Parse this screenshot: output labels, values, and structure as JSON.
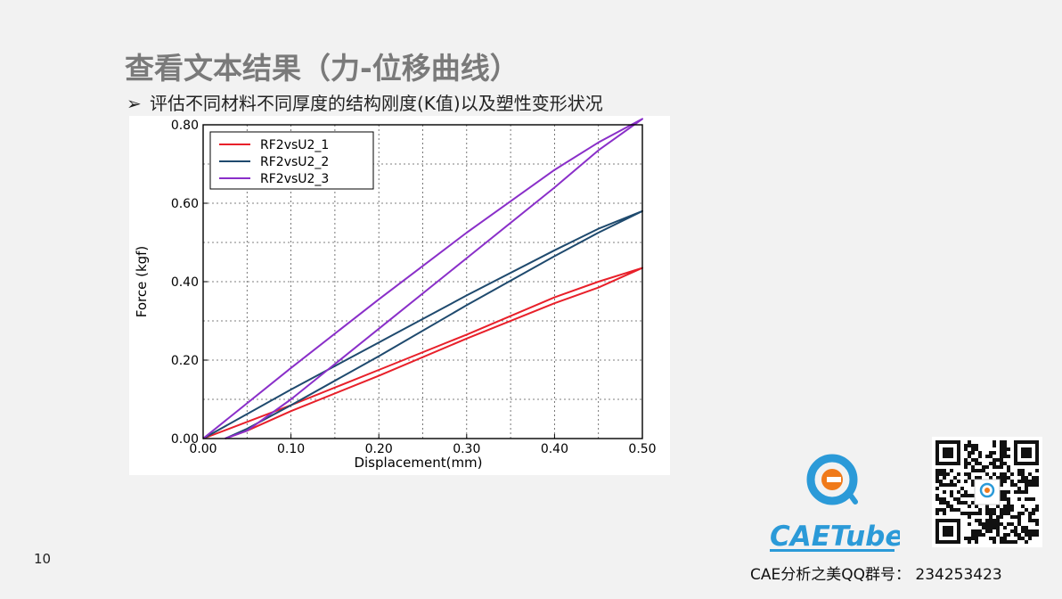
{
  "slide": {
    "title": "查看文本结果（力-位移曲线）",
    "bullet_mark": "➢",
    "bullet": "评估不同材料不同厚度的结构刚度(K值)以及塑性变形状况",
    "page_number": "10",
    "logo_text": "CAETube",
    "footer": "CAE分析之美QQ群号： 234253423"
  },
  "colors": {
    "series_1": "#e8202a",
    "series_2": "#1f4a6e",
    "series_3": "#8a2fc9",
    "title": "#7a7a7a",
    "logo_blue": "#2b9ad8",
    "logo_orange": "#f07a1a"
  },
  "icons": [
    "caetube-logo-icon",
    "qr-code-icon"
  ],
  "chart_data": {
    "type": "line",
    "xlabel": "Displacement(mm)",
    "ylabel": "Force (kgf)",
    "xlim": [
      0,
      0.5
    ],
    "ylim": [
      0,
      0.8
    ],
    "x_ticks": [
      "0.00",
      "0.10",
      "0.20",
      "0.30",
      "0.40",
      "0.50"
    ],
    "y_ticks": [
      "0.00",
      "0.20",
      "0.40",
      "0.60",
      "0.80"
    ],
    "grid": true,
    "legend": "top-left",
    "series": [
      {
        "name": "RF2vsU2_1",
        "loading": [
          [
            0,
            0
          ],
          [
            0.1,
            0.085
          ],
          [
            0.2,
            0.175
          ],
          [
            0.3,
            0.265
          ],
          [
            0.4,
            0.36
          ],
          [
            0.45,
            0.4
          ],
          [
            0.5,
            0.435
          ]
        ],
        "unloading": [
          [
            0.5,
            0.435
          ],
          [
            0.45,
            0.385
          ],
          [
            0.4,
            0.345
          ],
          [
            0.3,
            0.255
          ],
          [
            0.2,
            0.16
          ],
          [
            0.1,
            0.07
          ],
          [
            0.05,
            0.02
          ],
          [
            0.025,
            0
          ]
        ]
      },
      {
        "name": "RF2vsU2_2",
        "loading": [
          [
            0,
            0
          ],
          [
            0.1,
            0.125
          ],
          [
            0.2,
            0.245
          ],
          [
            0.3,
            0.365
          ],
          [
            0.4,
            0.48
          ],
          [
            0.45,
            0.535
          ],
          [
            0.5,
            0.58
          ]
        ],
        "unloading": [
          [
            0.5,
            0.58
          ],
          [
            0.45,
            0.525
          ],
          [
            0.4,
            0.465
          ],
          [
            0.3,
            0.34
          ],
          [
            0.2,
            0.21
          ],
          [
            0.1,
            0.085
          ],
          [
            0.05,
            0.025
          ],
          [
            0.025,
            0
          ]
        ]
      },
      {
        "name": "RF2vsU2_3",
        "loading": [
          [
            0,
            0
          ],
          [
            0.1,
            0.18
          ],
          [
            0.2,
            0.355
          ],
          [
            0.3,
            0.525
          ],
          [
            0.4,
            0.685
          ],
          [
            0.45,
            0.755
          ],
          [
            0.5,
            0.815
          ]
        ],
        "unloading": [
          [
            0.5,
            0.815
          ],
          [
            0.45,
            0.735
          ],
          [
            0.4,
            0.64
          ],
          [
            0.3,
            0.46
          ],
          [
            0.2,
            0.28
          ],
          [
            0.1,
            0.1
          ],
          [
            0.05,
            0.02
          ],
          [
            0.025,
            0
          ]
        ]
      }
    ]
  }
}
